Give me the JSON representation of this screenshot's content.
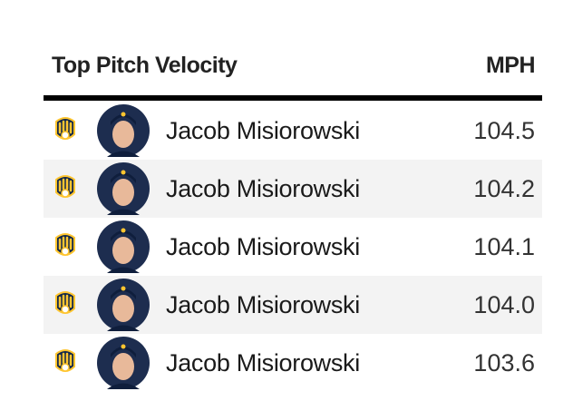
{
  "header": {
    "title": "Top Pitch Velocity",
    "unit": "MPH"
  },
  "rows": [
    {
      "name": "Jacob Misiorowski",
      "value": "104.5"
    },
    {
      "name": "Jacob Misiorowski",
      "value": "104.2"
    },
    {
      "name": "Jacob Misiorowski",
      "value": "104.1"
    },
    {
      "name": "Jacob Misiorowski",
      "value": "104.0"
    },
    {
      "name": "Jacob Misiorowski",
      "value": "103.6"
    }
  ]
}
